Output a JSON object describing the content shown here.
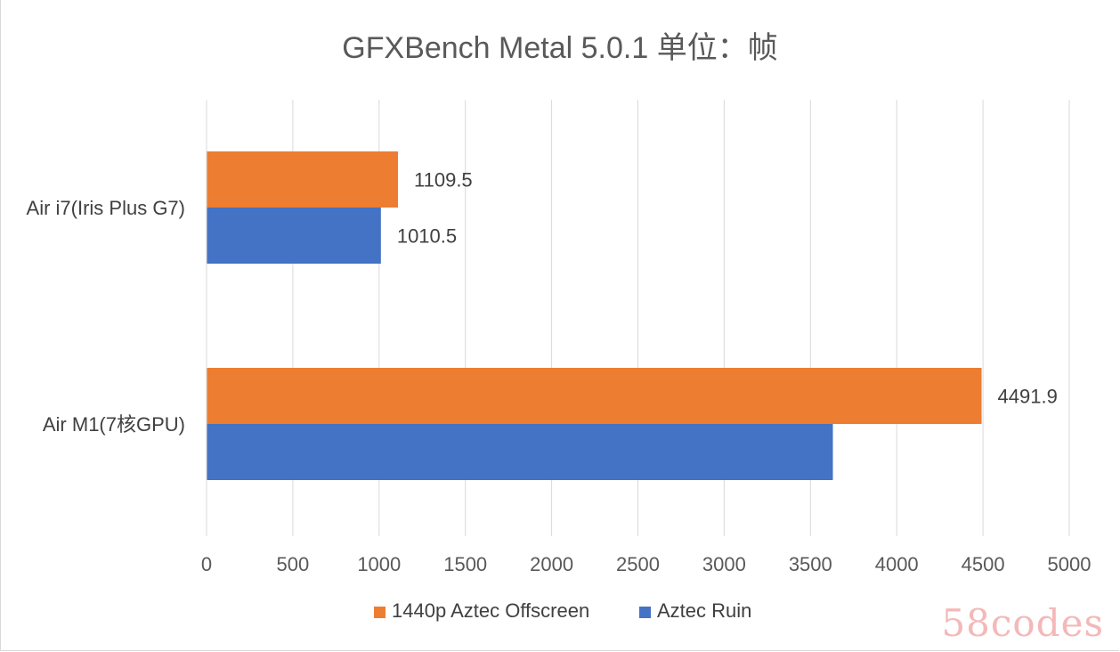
{
  "chart_data": {
    "type": "bar",
    "orientation": "horizontal",
    "title": "GFXBench Metal 5.0.1 单位：帧",
    "categories": [
      "Air i7(Iris Plus G7)",
      "Air M1(7核GPU)"
    ],
    "series": [
      {
        "name": "1440p Aztec Offscreen",
        "color": "#ed7d31",
        "values": [
          1109.5,
          4491.9
        ],
        "labels": [
          "1109.5",
          "4491.9"
        ]
      },
      {
        "name": "Aztec Ruin",
        "color": "#4472c4",
        "values": [
          1010.5,
          3630
        ],
        "labels": [
          "1010.5",
          ""
        ]
      }
    ],
    "xlim": [
      0,
      5000
    ],
    "xticks": [
      "0",
      "500",
      "1000",
      "1500",
      "2000",
      "2500",
      "3000",
      "3500",
      "4000",
      "4500",
      "5000"
    ],
    "grid": true,
    "legend_position": "bottom",
    "xlabel": "",
    "ylabel": ""
  },
  "watermark": "58codes"
}
